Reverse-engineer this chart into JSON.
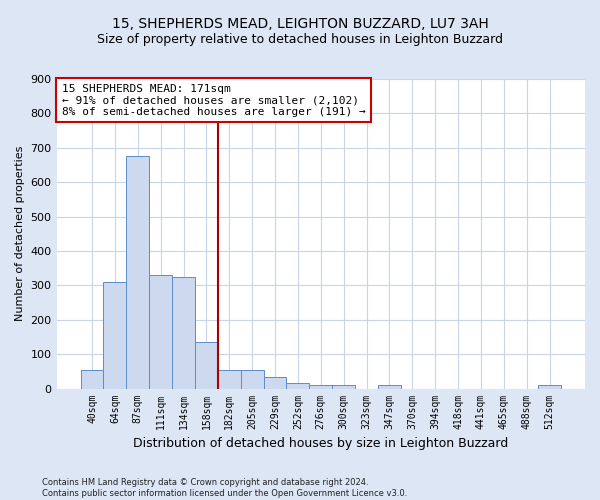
{
  "title1": "15, SHEPHERDS MEAD, LEIGHTON BUZZARD, LU7 3AH",
  "title2": "Size of property relative to detached houses in Leighton Buzzard",
  "xlabel": "Distribution of detached houses by size in Leighton Buzzard",
  "ylabel": "Number of detached properties",
  "footer": "Contains HM Land Registry data © Crown copyright and database right 2024.\nContains public sector information licensed under the Open Government Licence v3.0.",
  "bin_labels": [
    "40sqm",
    "64sqm",
    "87sqm",
    "111sqm",
    "134sqm",
    "158sqm",
    "182sqm",
    "205sqm",
    "229sqm",
    "252sqm",
    "276sqm",
    "300sqm",
    "323sqm",
    "347sqm",
    "370sqm",
    "394sqm",
    "418sqm",
    "441sqm",
    "465sqm",
    "488sqm",
    "512sqm"
  ],
  "bar_values": [
    55,
    310,
    675,
    330,
    325,
    135,
    55,
    55,
    35,
    15,
    10,
    10,
    0,
    10,
    0,
    0,
    0,
    0,
    0,
    0,
    10
  ],
  "bar_color": "#ccd9ee",
  "bar_edge_color": "#5b8dc8",
  "vline_x": 5.5,
  "vline_color": "#aa0000",
  "annotation_text": "15 SHEPHERDS MEAD: 171sqm\n← 91% of detached houses are smaller (2,102)\n8% of semi-detached houses are larger (191) →",
  "annotation_box_color": "#cc0000",
  "ylim": [
    0,
    900
  ],
  "yticks": [
    0,
    100,
    200,
    300,
    400,
    500,
    600,
    700,
    800,
    900
  ],
  "figure_bg_color": "#dce6f5",
  "plot_bg_color": "#ffffff",
  "grid_color": "#c8d4e8",
  "title_fontsize": 10,
  "subtitle_fontsize": 9
}
